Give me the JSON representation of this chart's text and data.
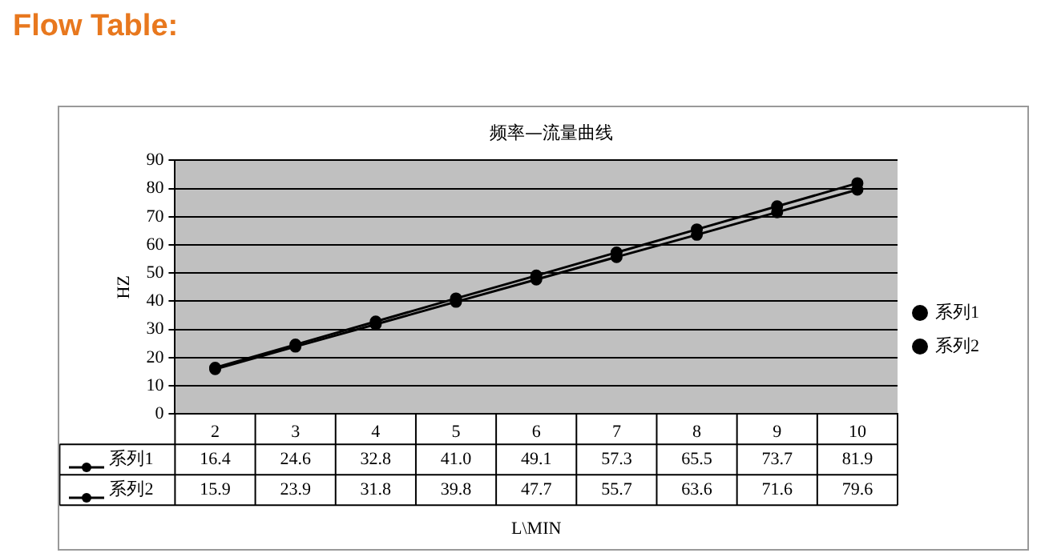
{
  "chart_data": {
    "type": "line",
    "title": "Flow Table:",
    "subtitle": "频率—流量曲线",
    "xlabel": "L\\MIN",
    "ylabel": "HZ",
    "categories": [
      "2",
      "3",
      "4",
      "5",
      "6",
      "7",
      "8",
      "9",
      "10"
    ],
    "series": [
      {
        "name": "系列1",
        "color": "#000000",
        "values": [
          16.4,
          24.6,
          32.8,
          41.0,
          49.1,
          57.3,
          65.5,
          73.7,
          81.9
        ],
        "value_labels": [
          "16.4",
          "24.6",
          "32.8",
          "41.0",
          "49.1",
          "57.3",
          "65.5",
          "73.7",
          "81.9"
        ]
      },
      {
        "name": "系列2",
        "color": "#000000",
        "values": [
          15.9,
          23.9,
          31.8,
          39.8,
          47.7,
          55.7,
          63.6,
          71.6,
          79.6
        ],
        "value_labels": [
          "15.9",
          "23.9",
          "31.8",
          "39.8",
          "47.7",
          "55.7",
          "63.6",
          "71.6",
          "79.6"
        ]
      }
    ],
    "ylim": [
      0,
      90
    ],
    "yticks": [
      0,
      10,
      20,
      30,
      40,
      50,
      60,
      70,
      80,
      90
    ],
    "grid": "y",
    "legend": "right",
    "marker": "circle",
    "line_style": "solid"
  }
}
